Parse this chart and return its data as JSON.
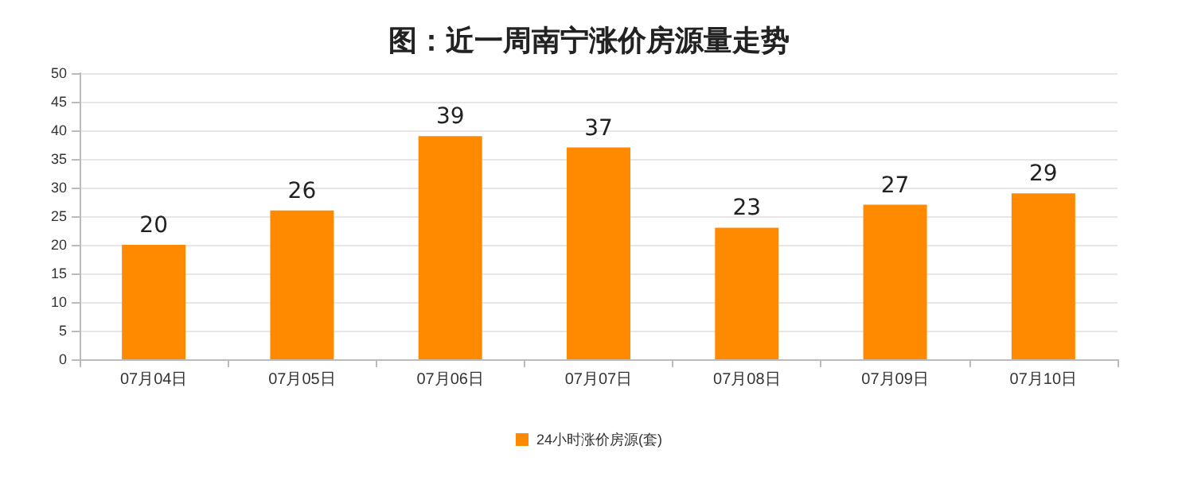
{
  "chart_data": {
    "type": "bar",
    "title": "图：近一周南宁涨价房源量走势",
    "categories": [
      "07月04日",
      "07月05日",
      "07月06日",
      "07月07日",
      "07月08日",
      "07月09日",
      "07月10日"
    ],
    "series": [
      {
        "name": "24小时涨价房源(套)",
        "color": "#ff8a00",
        "values": [
          20,
          26,
          39,
          37,
          23,
          27,
          29
        ]
      }
    ],
    "ylim": [
      0,
      50
    ],
    "yticks": [
      0,
      5,
      10,
      15,
      20,
      25,
      30,
      35,
      40,
      45,
      50
    ],
    "grid": "y",
    "legend": "bottom",
    "data_labels": true
  }
}
